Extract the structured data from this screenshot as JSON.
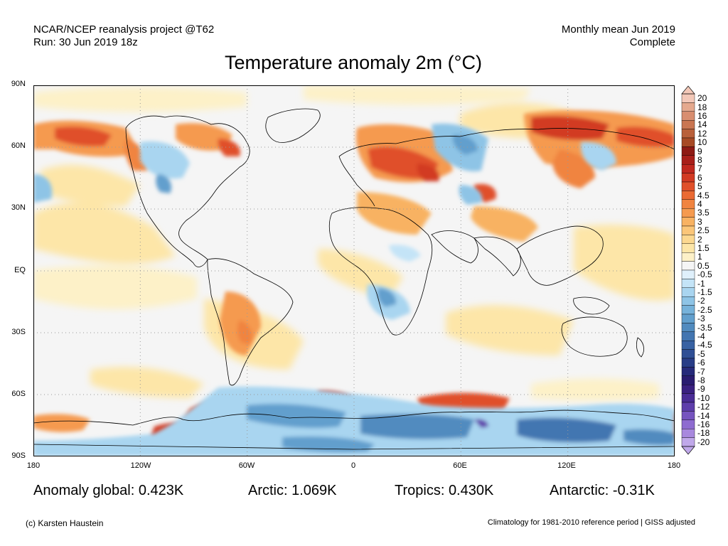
{
  "header": {
    "project": "NCAR/NCEP reanalysis project @T62",
    "run": "Run: 30 Jun 2019 18z",
    "period": "Monthly mean Jun 2019",
    "status": "Complete"
  },
  "title": "Temperature anomaly 2m (°C)",
  "map": {
    "lat_labels": [
      "90N",
      "60N",
      "30N",
      "EQ",
      "30S",
      "60S",
      "90S"
    ],
    "lon_labels": [
      "180",
      "120W",
      "60W",
      "0",
      "60E",
      "120E",
      "180"
    ],
    "lat_range": [
      -90,
      90
    ],
    "lon_range": [
      -180,
      180
    ],
    "grid": "dotted"
  },
  "colorbar": {
    "labels": [
      "20",
      "18",
      "16",
      "14",
      "12",
      "10",
      "9",
      "8",
      "7",
      "6",
      "5",
      "4.5",
      "4",
      "3.5",
      "3",
      "2.5",
      "2",
      "1.5",
      "1",
      "0.5",
      "-0.5",
      "-1",
      "-1.5",
      "-2",
      "-2.5",
      "-3",
      "-3.5",
      "-4",
      "-4.5",
      "-5",
      "-6",
      "-7",
      "-8",
      "-9",
      "-10",
      "-12",
      "-14",
      "-16",
      "-18",
      "-20"
    ],
    "colors": [
      "#f3c8b8",
      "#e5a98e",
      "#d88e70",
      "#c97652",
      "#b9603a",
      "#a74a25",
      "#8e1a14",
      "#a81f1a",
      "#c0281f",
      "#d23a23",
      "#e0502a",
      "#ea6a33",
      "#f08440",
      "#f59a4f",
      "#f8b262",
      "#fbc679",
      "#fcd890",
      "#fde6a8",
      "#fdf1c8",
      "#f5f5f5",
      "#dff0fb",
      "#c4e4f7",
      "#a9d5f0",
      "#8ec4e6",
      "#76b2da",
      "#629fcd",
      "#518bbf",
      "#4376b1",
      "#3862a3",
      "#2f4f95",
      "#283d87",
      "#262a7a",
      "#2a1c70",
      "#3a2080",
      "#4a2c95",
      "#5e3eab",
      "#7654bf",
      "#8e6cd0",
      "#a888de",
      "#c0a8ea"
    ]
  },
  "stats": {
    "global": "Anomaly global: 0.423K",
    "arctic": "Arctic: 1.069K",
    "tropics": "Tropics: 0.430K",
    "antarctic": "Antarctic: -0.31K"
  },
  "footer": {
    "credit": "(c) Karsten Haustein",
    "note": "Climatology for 1981-2010 reference period | GISS adjusted"
  }
}
